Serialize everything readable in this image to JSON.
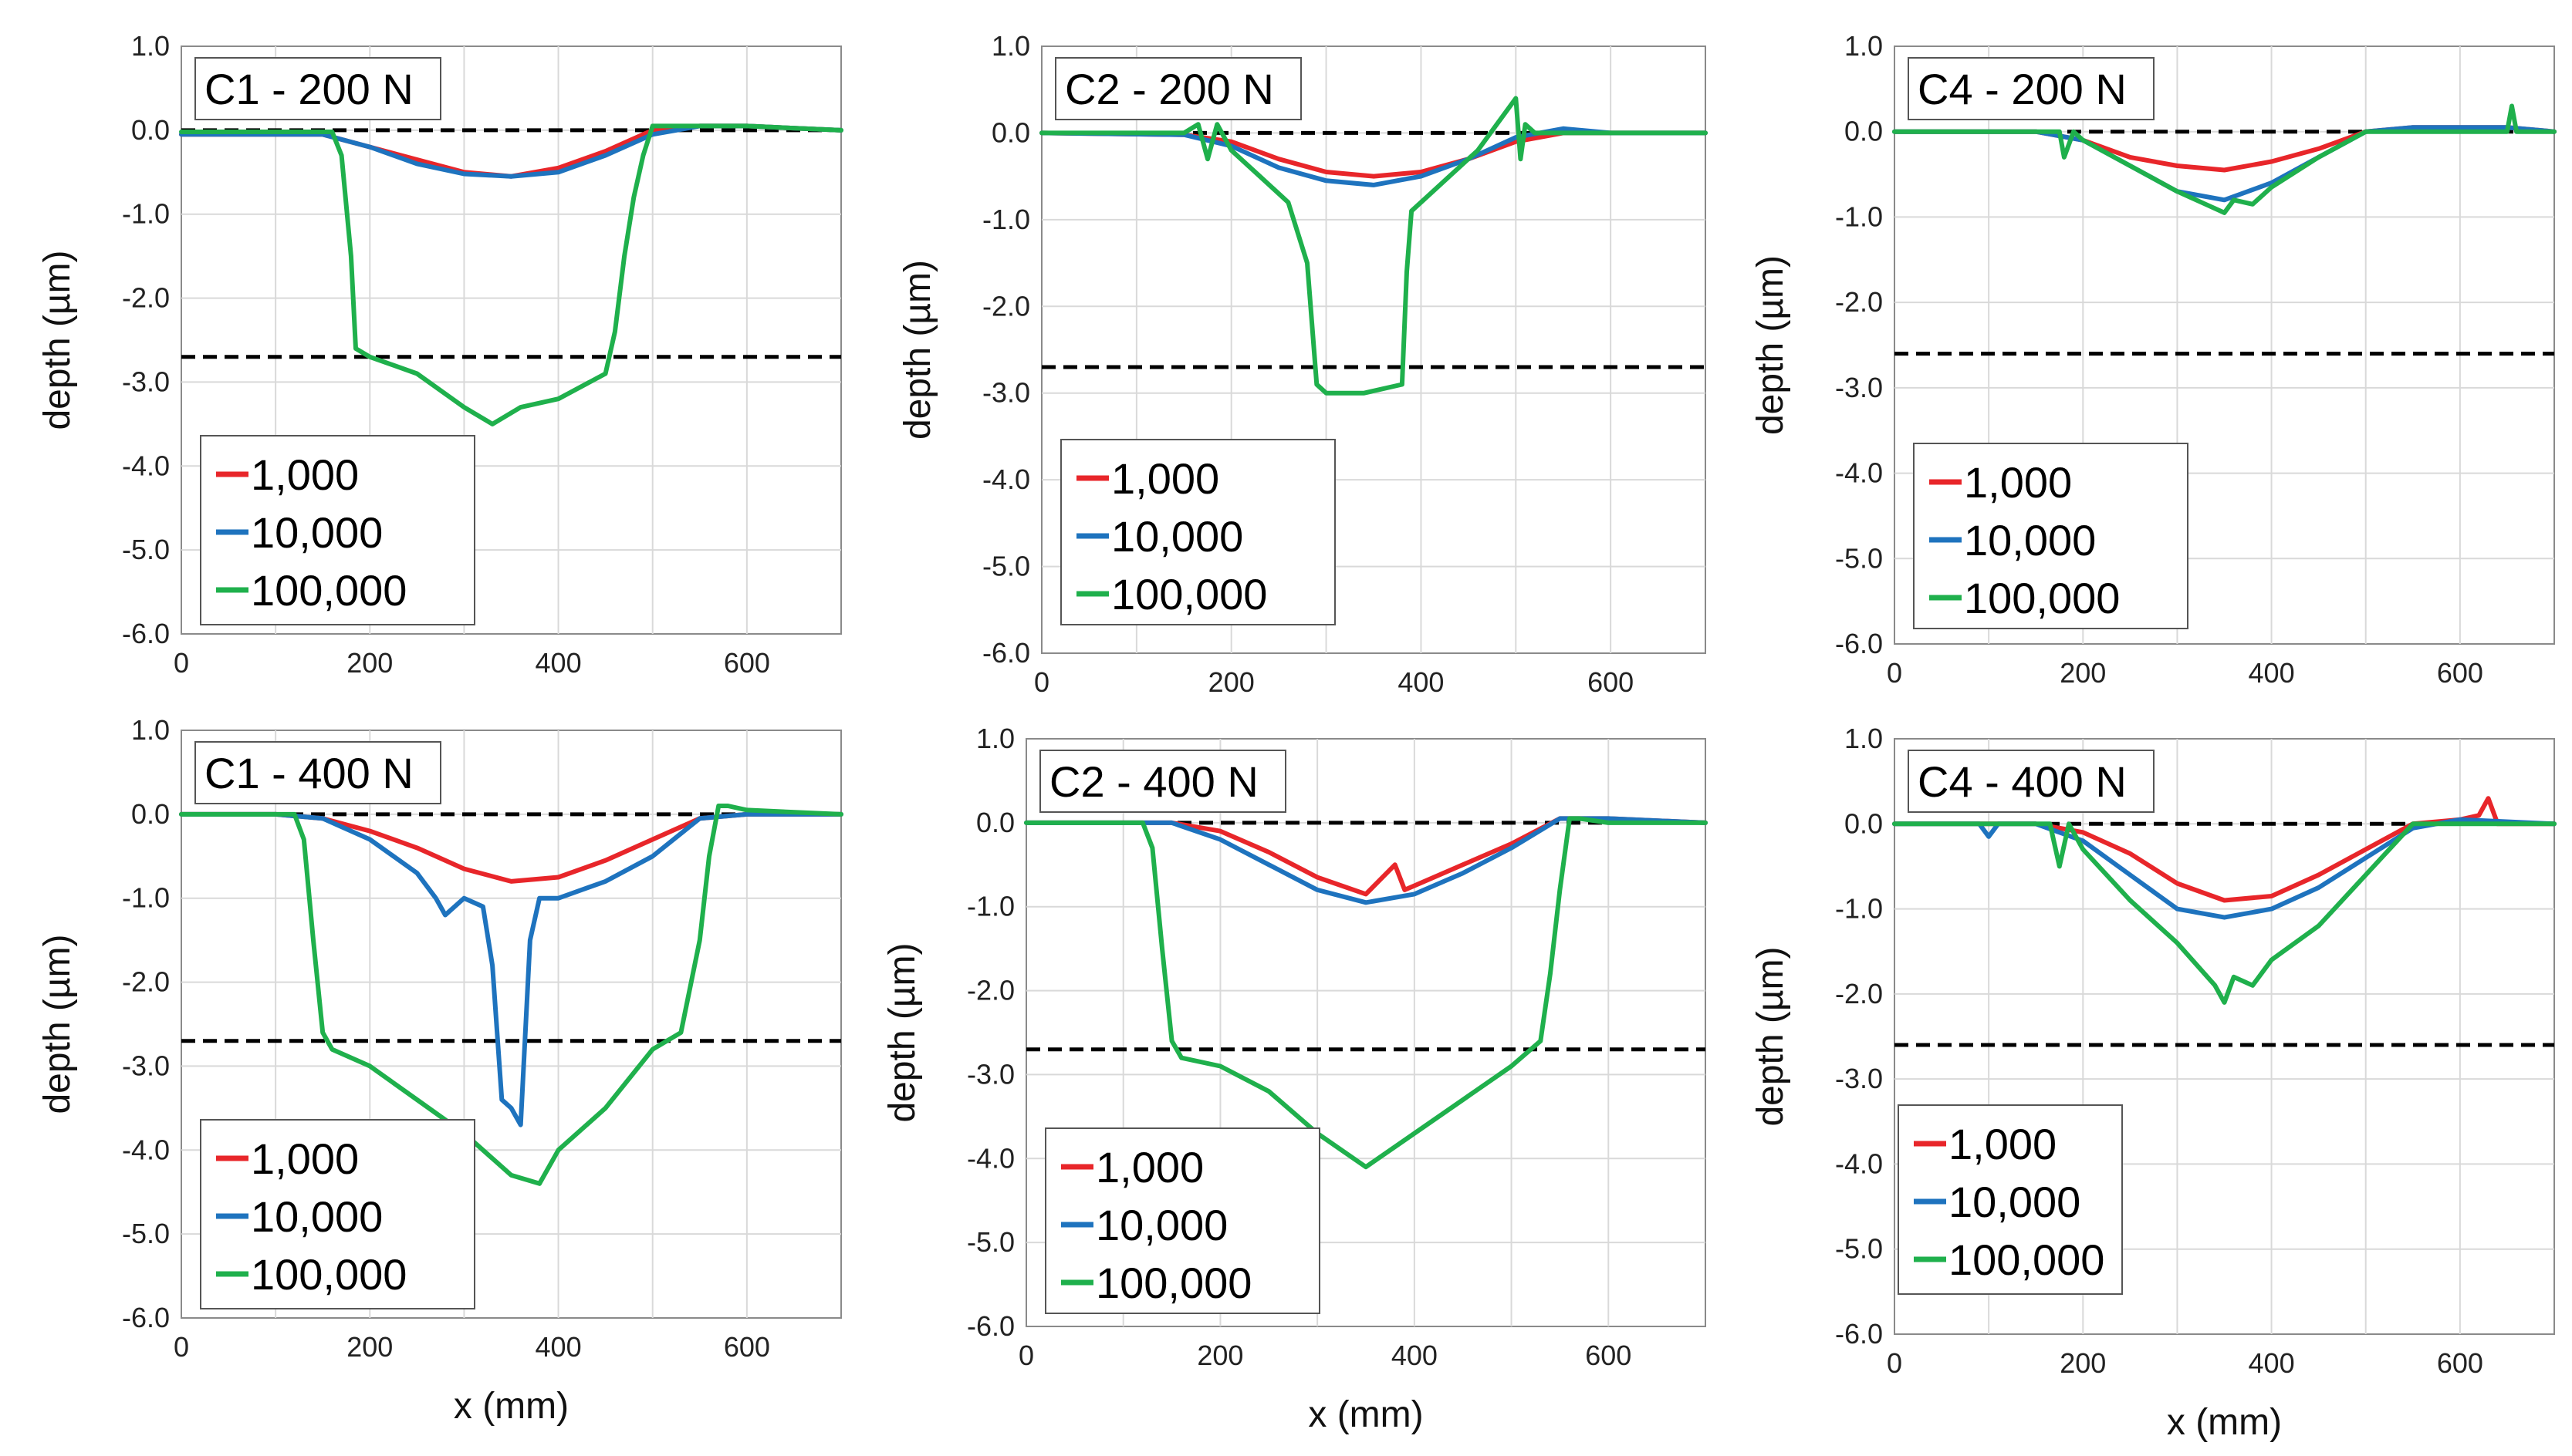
{
  "chart_data": [
    {
      "type": "line",
      "title": "C1 - 200 N",
      "xlabel": "",
      "ylabel": "depth (µm)",
      "xlim": [
        0,
        700
      ],
      "ylim": [
        -6,
        1
      ],
      "xticks": [
        "0",
        "200",
        "400",
        "600"
      ],
      "yticks": [
        "1.0",
        "0.0",
        "-1.0",
        "-2.0",
        "-3.0",
        "-4.0",
        "-5.0",
        "-6.0"
      ],
      "ref_lines": [
        0.0,
        -2.7
      ],
      "series": [
        {
          "name": "1,000",
          "color": "#e8262a",
          "x": [
            0,
            150,
            200,
            250,
            300,
            350,
            400,
            450,
            500,
            550,
            600,
            700
          ],
          "y": [
            -0.05,
            -0.05,
            -0.2,
            -0.35,
            -0.5,
            -0.55,
            -0.45,
            -0.25,
            0.0,
            0.05,
            0.05,
            0.0
          ]
        },
        {
          "name": "10,000",
          "color": "#1e73be",
          "x": [
            0,
            150,
            200,
            250,
            300,
            350,
            400,
            450,
            500,
            550,
            600,
            700
          ],
          "y": [
            -0.05,
            -0.05,
            -0.2,
            -0.4,
            -0.52,
            -0.55,
            -0.5,
            -0.3,
            -0.05,
            0.05,
            0.05,
            0.0
          ]
        },
        {
          "name": "100,000",
          "color": "#1fb04c",
          "x": [
            0,
            160,
            170,
            180,
            185,
            200,
            250,
            300,
            330,
            360,
            400,
            450,
            460,
            470,
            480,
            490,
            500,
            550,
            600,
            700
          ],
          "y": [
            -0.02,
            -0.02,
            -0.3,
            -1.5,
            -2.6,
            -2.7,
            -2.9,
            -3.3,
            -3.5,
            -3.3,
            -3.2,
            -2.9,
            -2.4,
            -1.5,
            -0.8,
            -0.3,
            0.05,
            0.05,
            0.05,
            0.0
          ]
        }
      ]
    },
    {
      "type": "line",
      "title": "C2 - 200 N",
      "xlabel": "",
      "ylabel": "depth (µm)",
      "xlim": [
        0,
        700
      ],
      "ylim": [
        -6,
        1
      ],
      "xticks": [
        "0",
        "200",
        "400",
        "600"
      ],
      "yticks": [
        "1.0",
        "0.0",
        "-1.0",
        "-2.0",
        "-3.0",
        "-4.0",
        "-5.0",
        "-6.0"
      ],
      "ref_lines": [
        0.0,
        -2.7
      ],
      "series": [
        {
          "name": "1,000",
          "color": "#e8262a",
          "x": [
            0,
            150,
            200,
            250,
            300,
            350,
            400,
            450,
            500,
            550,
            600,
            700
          ],
          "y": [
            0.0,
            -0.02,
            -0.1,
            -0.3,
            -0.45,
            -0.5,
            -0.45,
            -0.3,
            -0.1,
            0.0,
            0.0,
            0.0
          ]
        },
        {
          "name": "10,000",
          "color": "#1e73be",
          "x": [
            0,
            150,
            200,
            250,
            300,
            350,
            400,
            450,
            500,
            550,
            600,
            700
          ],
          "y": [
            0.0,
            -0.02,
            -0.15,
            -0.4,
            -0.55,
            -0.6,
            -0.5,
            -0.3,
            -0.05,
            0.05,
            0.0,
            0.0
          ]
        },
        {
          "name": "100,000",
          "color": "#1fb04c",
          "x": [
            0,
            150,
            165,
            175,
            185,
            200,
            230,
            260,
            280,
            290,
            300,
            340,
            380,
            385,
            390,
            400,
            430,
            460,
            500,
            505,
            510,
            520,
            600,
            700
          ],
          "y": [
            0.0,
            0.0,
            0.1,
            -0.3,
            0.1,
            -0.2,
            -0.5,
            -0.8,
            -1.5,
            -2.9,
            -3.0,
            -3.0,
            -2.9,
            -1.6,
            -0.9,
            -0.8,
            -0.5,
            -0.2,
            0.4,
            -0.3,
            0.1,
            0.0,
            0.0,
            0.0
          ]
        }
      ]
    },
    {
      "type": "line",
      "title": "C4 - 200 N",
      "xlabel": "",
      "ylabel": "depth (µm)",
      "xlim": [
        0,
        700
      ],
      "ylim": [
        -6,
        1
      ],
      "xticks": [
        "0",
        "200",
        "400",
        "600"
      ],
      "yticks": [
        "1.0",
        "0.0",
        "-1.0",
        "-2.0",
        "-3.0",
        "-4.0",
        "-5.0",
        "-6.0"
      ],
      "ref_lines": [
        0.0,
        -2.6
      ],
      "series": [
        {
          "name": "1,000",
          "color": "#e8262a",
          "x": [
            0,
            150,
            200,
            250,
            300,
            350,
            400,
            450,
            500,
            550,
            650,
            700
          ],
          "y": [
            0.0,
            0.0,
            -0.1,
            -0.3,
            -0.4,
            -0.45,
            -0.35,
            -0.2,
            0.0,
            0.05,
            0.05,
            0.0
          ]
        },
        {
          "name": "10,000",
          "color": "#1e73be",
          "x": [
            0,
            150,
            200,
            250,
            300,
            350,
            400,
            450,
            500,
            550,
            650,
            700
          ],
          "y": [
            0.0,
            0.0,
            -0.1,
            -0.4,
            -0.7,
            -0.8,
            -0.6,
            -0.3,
            0.0,
            0.05,
            0.05,
            0.0
          ]
        },
        {
          "name": "100,000",
          "color": "#1fb04c",
          "x": [
            0,
            150,
            175,
            180,
            190,
            200,
            250,
            300,
            330,
            350,
            360,
            380,
            400,
            450,
            500,
            650,
            655,
            660,
            700
          ],
          "y": [
            0.0,
            0.0,
            0.0,
            -0.3,
            0.0,
            -0.1,
            -0.4,
            -0.7,
            -0.85,
            -0.95,
            -0.8,
            -0.85,
            -0.65,
            -0.3,
            0.0,
            0.0,
            0.3,
            0.0,
            0.0
          ]
        }
      ]
    },
    {
      "type": "line",
      "title": "C1 - 400 N",
      "xlabel": "x (mm)",
      "ylabel": "depth (µm)",
      "xlim": [
        0,
        700
      ],
      "ylim": [
        -6,
        1
      ],
      "xticks": [
        "0",
        "200",
        "400",
        "600"
      ],
      "yticks": [
        "1.0",
        "0.0",
        "-1.0",
        "-2.0",
        "-3.0",
        "-4.0",
        "-5.0",
        "-6.0"
      ],
      "ref_lines": [
        0.0,
        -2.7
      ],
      "series": [
        {
          "name": "1,000",
          "color": "#e8262a",
          "x": [
            0,
            100,
            150,
            200,
            250,
            300,
            350,
            400,
            450,
            500,
            550,
            600,
            700
          ],
          "y": [
            0.0,
            0.0,
            -0.05,
            -0.2,
            -0.4,
            -0.65,
            -0.8,
            -0.75,
            -0.55,
            -0.3,
            -0.05,
            0.0,
            0.0
          ]
        },
        {
          "name": "10,000",
          "color": "#1e73be",
          "x": [
            0,
            100,
            150,
            200,
            250,
            270,
            280,
            300,
            320,
            330,
            340,
            350,
            360,
            370,
            380,
            400,
            450,
            500,
            550,
            600,
            700
          ],
          "y": [
            0.0,
            0.0,
            -0.05,
            -0.3,
            -0.7,
            -1.0,
            -1.2,
            -1.0,
            -1.1,
            -1.8,
            -3.4,
            -3.5,
            -3.7,
            -1.5,
            -1.0,
            -1.0,
            -0.8,
            -0.5,
            -0.05,
            0.0,
            0.0
          ]
        },
        {
          "name": "100,000",
          "color": "#1fb04c",
          "x": [
            0,
            120,
            130,
            140,
            150,
            160,
            200,
            250,
            300,
            350,
            380,
            400,
            450,
            500,
            530,
            550,
            560,
            570,
            580,
            600,
            700
          ],
          "y": [
            0.0,
            0.0,
            -0.3,
            -1.5,
            -2.6,
            -2.8,
            -3.0,
            -3.4,
            -3.8,
            -4.3,
            -4.4,
            -4.0,
            -3.5,
            -2.8,
            -2.6,
            -1.5,
            -0.5,
            0.1,
            0.1,
            0.05,
            0.0
          ]
        }
      ]
    },
    {
      "type": "line",
      "title": "C2 - 400 N",
      "xlabel": "x (mm)",
      "ylabel": "depth (µm)",
      "xlim": [
        0,
        700
      ],
      "ylim": [
        -6,
        1
      ],
      "xticks": [
        "0",
        "200",
        "400",
        "600"
      ],
      "yticks": [
        "1.0",
        "0.0",
        "-1.0",
        "-2.0",
        "-3.0",
        "-4.0",
        "-5.0",
        "-6.0"
      ],
      "ref_lines": [
        0.0,
        -2.7
      ],
      "series": [
        {
          "name": "1,000",
          "color": "#e8262a",
          "x": [
            0,
            150,
            200,
            250,
            300,
            350,
            380,
            390,
            400,
            450,
            500,
            550,
            600,
            700
          ],
          "y": [
            0.0,
            0.0,
            -0.1,
            -0.35,
            -0.65,
            -0.85,
            -0.5,
            -0.8,
            -0.75,
            -0.5,
            -0.25,
            0.05,
            0.05,
            0.0
          ]
        },
        {
          "name": "10,000",
          "color": "#1e73be",
          "x": [
            0,
            150,
            200,
            250,
            300,
            350,
            400,
            450,
            500,
            550,
            600,
            700
          ],
          "y": [
            0.0,
            0.0,
            -0.2,
            -0.5,
            -0.8,
            -0.95,
            -0.85,
            -0.6,
            -0.3,
            0.05,
            0.05,
            0.0
          ]
        },
        {
          "name": "100,000",
          "color": "#1fb04c",
          "x": [
            0,
            120,
            130,
            140,
            150,
            160,
            200,
            250,
            300,
            350,
            400,
            450,
            500,
            530,
            540,
            550,
            560,
            570,
            600,
            700
          ],
          "y": [
            0.0,
            0.0,
            -0.3,
            -1.5,
            -2.6,
            -2.8,
            -2.9,
            -3.2,
            -3.7,
            -4.1,
            -3.7,
            -3.3,
            -2.9,
            -2.6,
            -1.8,
            -0.8,
            0.05,
            0.05,
            0.0,
            0.0
          ]
        }
      ]
    },
    {
      "type": "line",
      "title": "C4 - 400 N",
      "xlabel": "x (mm)",
      "ylabel": "depth (µm)",
      "xlim": [
        0,
        700
      ],
      "ylim": [
        -6,
        1
      ],
      "xticks": [
        "0",
        "200",
        "400",
        "600"
      ],
      "yticks": [
        "1.0",
        "0.0",
        "-1.0",
        "-2.0",
        "-3.0",
        "-4.0",
        "-5.0",
        "-6.0"
      ],
      "ref_lines": [
        0.0,
        -2.6
      ],
      "series": [
        {
          "name": "1,000",
          "color": "#e8262a",
          "x": [
            0,
            150,
            200,
            250,
            300,
            350,
            400,
            450,
            500,
            550,
            600,
            620,
            630,
            640,
            700
          ],
          "y": [
            0.0,
            0.0,
            -0.1,
            -0.35,
            -0.7,
            -0.9,
            -0.85,
            -0.6,
            -0.3,
            0.0,
            0.05,
            0.1,
            0.3,
            0.0,
            0.0
          ]
        },
        {
          "name": "10,000",
          "color": "#1e73be",
          "x": [
            0,
            90,
            100,
            110,
            150,
            200,
            250,
            300,
            350,
            400,
            450,
            500,
            550,
            600,
            700
          ],
          "y": [
            0.0,
            0.0,
            -0.15,
            0.0,
            0.0,
            -0.2,
            -0.6,
            -1.0,
            -1.1,
            -1.0,
            -0.75,
            -0.4,
            -0.05,
            0.05,
            0.0
          ]
        },
        {
          "name": "100,000",
          "color": "#1fb04c",
          "x": [
            0,
            150,
            165,
            175,
            185,
            200,
            250,
            300,
            340,
            350,
            360,
            380,
            400,
            450,
            500,
            550,
            600,
            700
          ],
          "y": [
            0.0,
            0.0,
            0.0,
            -0.5,
            0.0,
            -0.3,
            -0.9,
            -1.4,
            -1.9,
            -2.1,
            -1.8,
            -1.9,
            -1.6,
            -1.2,
            -0.6,
            0.0,
            0.0,
            0.0
          ]
        }
      ]
    }
  ]
}
